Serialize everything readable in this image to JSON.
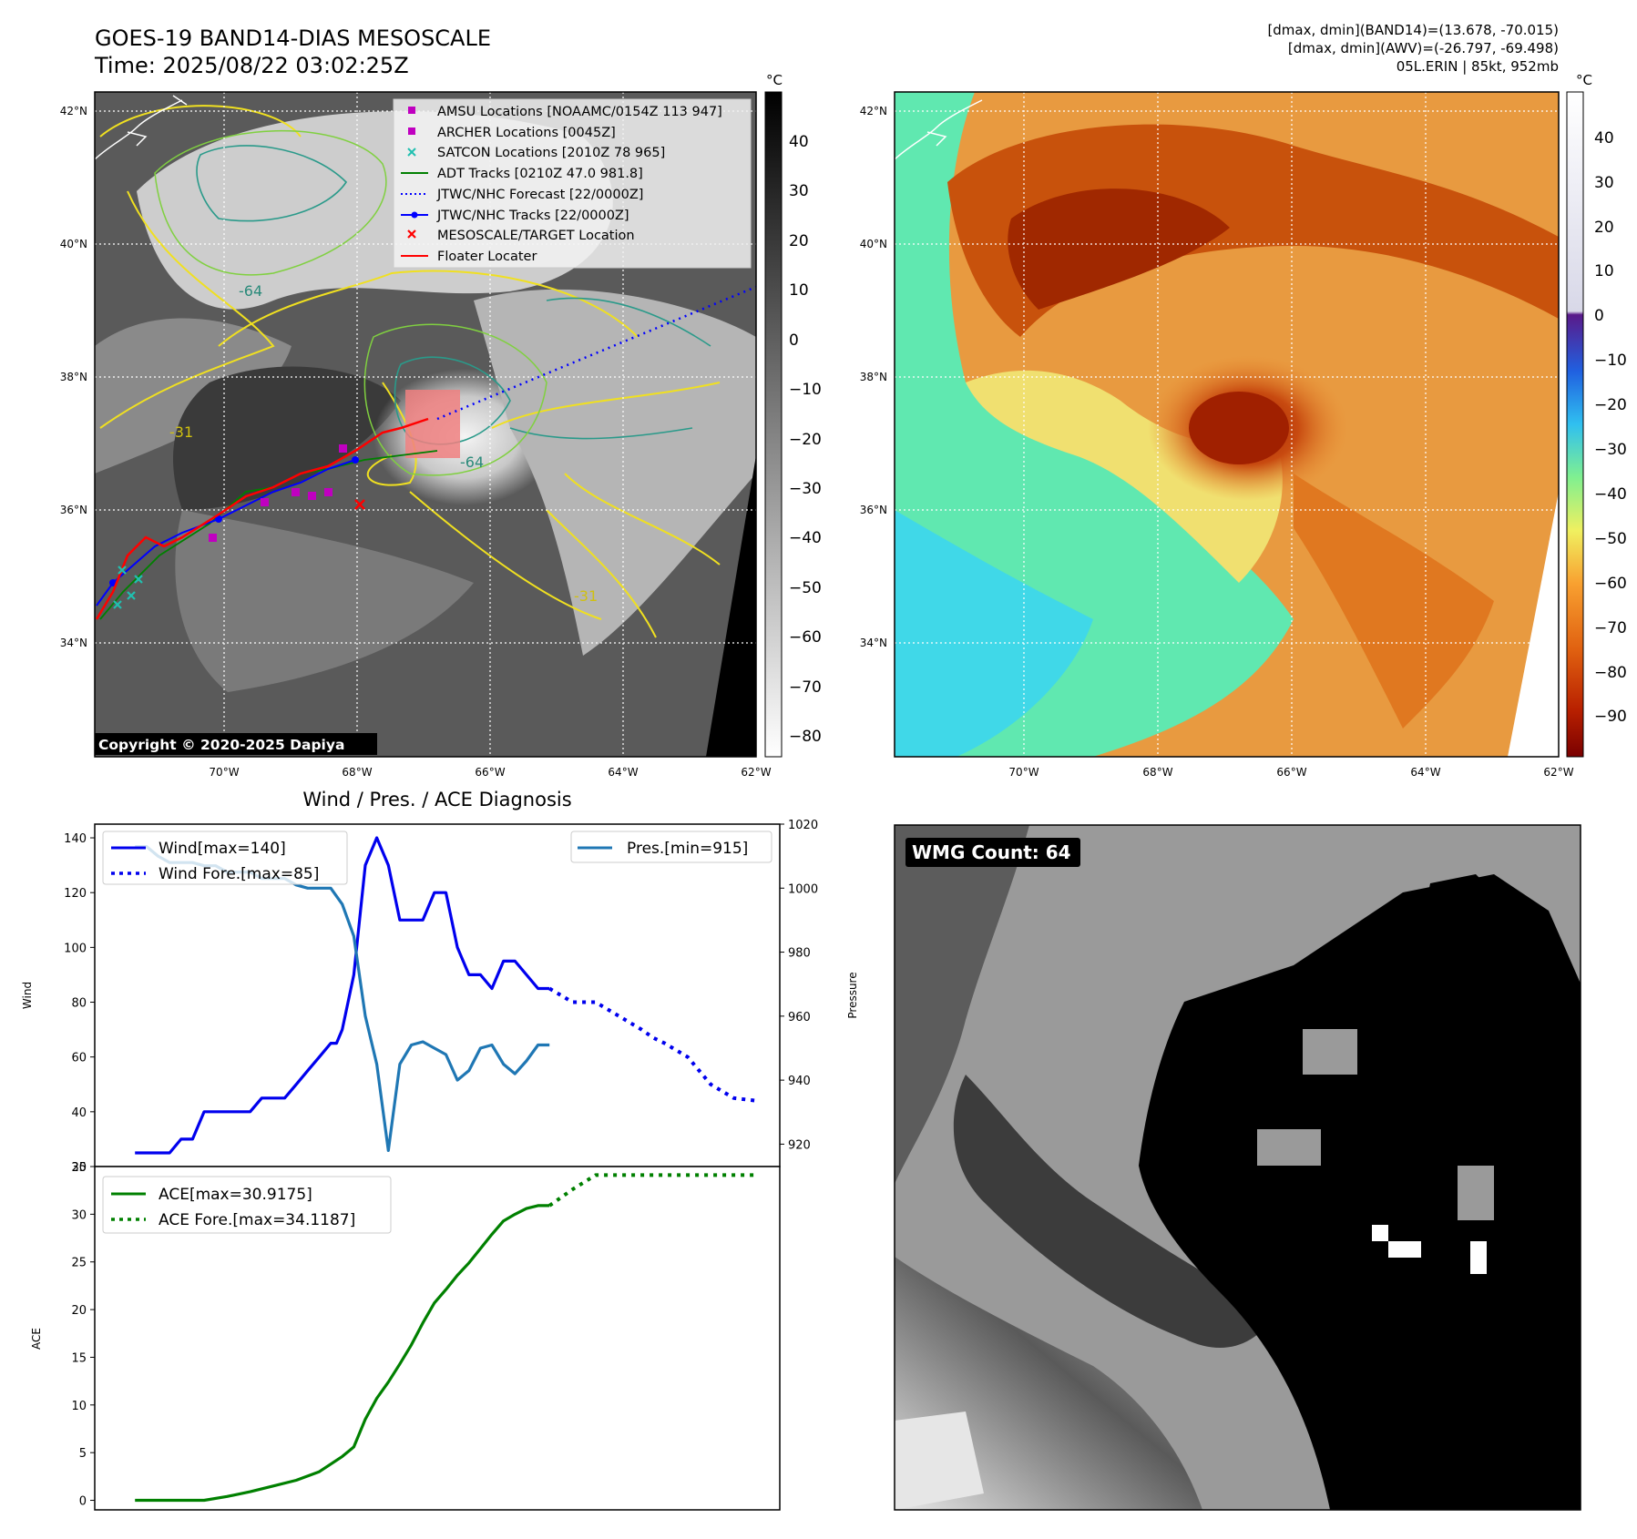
{
  "header": {
    "title_line1": "GOES-19 BAND14-DIAS MESOSCALE",
    "title_line2": "Time: 2025/08/22 03:02:25Z",
    "info_line1": "[dmax, dmin](BAND14)=(13.678, -70.015)",
    "info_line2": "[dmax, dmin](AWV)=(-26.797, -69.498)",
    "info_line3": "05L.ERIN | 85kt, 952mb"
  },
  "map_axes": {
    "lat_labels": [
      "42°N",
      "40°N",
      "38°N",
      "36°N",
      "34°N"
    ],
    "lon_labels": [
      "70°W",
      "68°W",
      "66°W",
      "64°W",
      "62°W"
    ]
  },
  "ir_panel": {
    "legend": [
      {
        "label": "AMSU Locations [NOAAMC/0154Z 113 947]",
        "color": "#c000c0"
      },
      {
        "label": "ARCHER Locations [0045Z]",
        "color": "#c000c0"
      },
      {
        "label": "SATCON Locations [2010Z 78 965]",
        "color": "#20c0b0"
      },
      {
        "label": "ADT Tracks [0210Z 47.0 981.8]",
        "color": "#008000"
      },
      {
        "label": "JTWC/NHC Forecast [22/0000Z]",
        "color": "#0000ff"
      },
      {
        "label": "JTWC/NHC Tracks [22/0000Z]",
        "color": "#0000ff"
      },
      {
        "label": "MESOSCALE/TARGET Location",
        "color": "#ff0000"
      },
      {
        "label": "Floater Locater",
        "color": "#ff0000"
      }
    ],
    "contour_labels": [
      "-64",
      "-31"
    ],
    "copyright": "Copyright © 2020-2025 Dapiya",
    "colorbar_unit": "°C",
    "colorbar_ticks": [
      "40",
      "30",
      "20",
      "10",
      "0",
      "−10",
      "−20",
      "−30",
      "−40",
      "−50",
      "−60",
      "−70",
      "−80"
    ]
  },
  "awv_panel": {
    "colorbar_unit": "°C",
    "colorbar_ticks": [
      "40",
      "30",
      "20",
      "10",
      "0",
      "−10",
      "−20",
      "−30",
      "−40",
      "−50",
      "−60",
      "−70",
      "−80",
      "−90"
    ]
  },
  "wmg_panel": {
    "label": "WMG Count: 64"
  },
  "chart_data": [
    {
      "type": "line",
      "title": "Wind / Pres. / ACE Diagnosis",
      "ylabel": "Wind",
      "y2label": "Pressure",
      "ylim": [
        20,
        145
      ],
      "y2lim": [
        913,
        1020
      ],
      "yticks": [
        20,
        40,
        60,
        80,
        100,
        120,
        140
      ],
      "y2ticks": [
        920,
        940,
        960,
        980,
        1000,
        1020
      ],
      "legend_left": [
        "Wind[max=140]",
        "Wind Fore.[max=85]"
      ],
      "legend_right": [
        "Pres.[min=915]"
      ],
      "series": [
        {
          "name": "Wind[max=140]",
          "color": "#0000ee",
          "x": [
            0,
            1,
            2,
            3,
            4,
            5,
            6,
            7,
            8,
            9,
            10,
            11,
            12,
            13,
            14,
            15,
            16,
            17,
            17.5,
            18,
            19,
            20,
            21,
            22,
            23,
            24,
            25,
            26,
            27,
            28,
            29,
            30,
            31,
            32,
            33,
            34,
            35,
            36
          ],
          "y": [
            25,
            25,
            25,
            25,
            30,
            30,
            40,
            40,
            40,
            40,
            40,
            45,
            45,
            45,
            50,
            55,
            60,
            65,
            65,
            70,
            90,
            130,
            140,
            130,
            110,
            110,
            110,
            120,
            120,
            100,
            90,
            90,
            85,
            95,
            95,
            90,
            85,
            85
          ]
        },
        {
          "name": "Wind Fore.[max=85]",
          "color": "#0000ee",
          "dash": true,
          "x": [
            36,
            38,
            40,
            42,
            44,
            45,
            46,
            48,
            49,
            50,
            52,
            54
          ],
          "y": [
            85,
            80,
            80,
            75,
            70,
            67,
            65,
            60,
            55,
            50,
            45,
            44
          ]
        },
        {
          "name": "Pres.[min=915]",
          "color": "#1f77b4",
          "axis": "right",
          "x": [
            0,
            1,
            2,
            3,
            4,
            5,
            6,
            7,
            8,
            9,
            10,
            11,
            12,
            13,
            14,
            15,
            16,
            17,
            18,
            19,
            20,
            21,
            22,
            23,
            24,
            25,
            26,
            27,
            28,
            29,
            30,
            31,
            32,
            33,
            34,
            35,
            36
          ],
          "y": [
            1013,
            1013,
            1010,
            1008,
            1008,
            1008,
            1007,
            1007,
            1005,
            1005,
            1005,
            1003,
            1003,
            1003,
            1001,
            1000,
            1000,
            1000,
            995,
            985,
            960,
            945,
            918,
            945,
            951,
            952,
            950,
            948,
            940,
            943,
            950,
            951,
            945,
            942,
            946,
            951,
            951
          ]
        }
      ]
    },
    {
      "type": "line",
      "ylabel": "ACE",
      "ylim": [
        -1,
        35
      ],
      "yticks": [
        0,
        5,
        10,
        15,
        20,
        25,
        30,
        35
      ],
      "legend": [
        "ACE[max=30.9175]",
        "ACE Fore.[max=34.1187]"
      ],
      "series": [
        {
          "name": "ACE[max=30.9175]",
          "color": "#008000",
          "x": [
            0,
            2,
            4,
            6,
            8,
            10,
            12,
            14,
            16,
            18,
            19,
            20,
            21,
            22,
            23,
            24,
            25,
            26,
            27,
            28,
            29,
            30,
            31,
            32,
            33,
            34,
            35,
            36
          ],
          "y": [
            0,
            0,
            0,
            0,
            0.4,
            0.9,
            1.5,
            2.1,
            3.0,
            4.6,
            5.6,
            8.5,
            10.7,
            12.4,
            14.3,
            16.3,
            18.6,
            20.7,
            22.1,
            23.6,
            24.9,
            26.4,
            27.9,
            29.3,
            30.0,
            30.6,
            30.9,
            30.9
          ]
        },
        {
          "name": "ACE Fore.[max=34.1187]",
          "color": "#008000",
          "dash": true,
          "x": [
            36,
            38,
            40,
            42,
            44,
            46,
            48,
            50,
            52,
            54
          ],
          "y": [
            30.9,
            32.6,
            34.1,
            34.1,
            34.1,
            34.1,
            34.1,
            34.1,
            34.1,
            34.1
          ]
        }
      ]
    }
  ]
}
